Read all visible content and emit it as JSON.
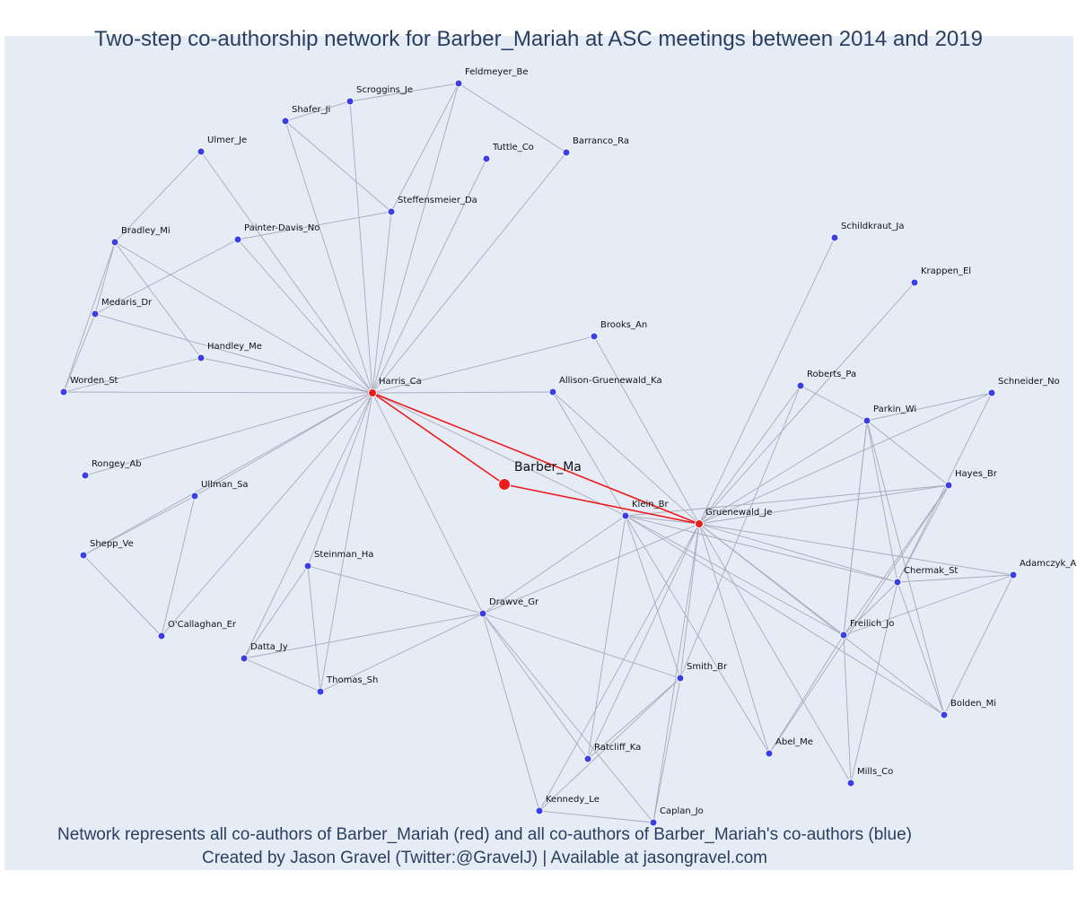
{
  "title": "Two-step co-authorship network for Barber_Mariah at ASC meetings between 2014 and 2019",
  "caption": {
    "line1": "Network represents all co-authors of Barber_Mariah (red) and all co-authors of Barber_Mariah's co-authors (blue)",
    "line2": "Created by Jason Gravel (Twitter:@GravelJ) | Available at jasongravel.com"
  },
  "colors": {
    "background": "#e5ecf6",
    "red": "#ef1c1c",
    "blue": "#3c3fe5",
    "edge": "#a9aab8",
    "title": "#2a3f5f"
  },
  "center": "Barber_Ma",
  "nodes": [
    {
      "id": "Barber_Ma",
      "group": "center"
    },
    {
      "id": "Harris_Ca",
      "group": "coauthor"
    },
    {
      "id": "Gruenewald_Je",
      "group": "coauthor"
    },
    {
      "id": "Feldmeyer_Be",
      "group": "second"
    },
    {
      "id": "Scroggins_Je",
      "group": "second"
    },
    {
      "id": "Shafer_Ji",
      "group": "second"
    },
    {
      "id": "Tuttle_Co",
      "group": "second"
    },
    {
      "id": "Barranco_Ra",
      "group": "second"
    },
    {
      "id": "Ulmer_Je",
      "group": "second"
    },
    {
      "id": "Steffensmeier_Da",
      "group": "second"
    },
    {
      "id": "Bradley_Mi",
      "group": "second"
    },
    {
      "id": "Painter-Davis_No",
      "group": "second"
    },
    {
      "id": "Medaris_Dr",
      "group": "second"
    },
    {
      "id": "Handley_Me",
      "group": "second"
    },
    {
      "id": "Worden_St",
      "group": "second"
    },
    {
      "id": "Rongey_Ab",
      "group": "second"
    },
    {
      "id": "Ullman_Sa",
      "group": "second"
    },
    {
      "id": "Shepp_Ve",
      "group": "second"
    },
    {
      "id": "O'Callaghan_Er",
      "group": "second"
    },
    {
      "id": "Steinman_Ha",
      "group": "second"
    },
    {
      "id": "Datta_Jy",
      "group": "second"
    },
    {
      "id": "Thomas_Sh",
      "group": "second"
    },
    {
      "id": "Brooks_An",
      "group": "second"
    },
    {
      "id": "Allison-Gruenewald_Ka",
      "group": "second"
    },
    {
      "id": "Drawve_Gr",
      "group": "second"
    },
    {
      "id": "Klein_Br",
      "group": "second"
    },
    {
      "id": "Schildkraut_Ja",
      "group": "second"
    },
    {
      "id": "Krappen_El",
      "group": "second"
    },
    {
      "id": "Roberts_Pa",
      "group": "second"
    },
    {
      "id": "Schneider_No",
      "group": "second"
    },
    {
      "id": "Parkin_Wi",
      "group": "second"
    },
    {
      "id": "Hayes_Br",
      "group": "second"
    },
    {
      "id": "Adamczyk_A",
      "group": "second"
    },
    {
      "id": "Chermak_St",
      "group": "second"
    },
    {
      "id": "Freilich_Jo",
      "group": "second"
    },
    {
      "id": "Smith_Br",
      "group": "second"
    },
    {
      "id": "Bolden_Mi",
      "group": "second"
    },
    {
      "id": "Abel_Me",
      "group": "second"
    },
    {
      "id": "Ratcliff_Ka",
      "group": "second"
    },
    {
      "id": "Mills_Co",
      "group": "second"
    },
    {
      "id": "Kennedy_Le",
      "group": "second"
    },
    {
      "id": "Caplan_Jo",
      "group": "second"
    }
  ],
  "edges": [
    [
      "Barber_Ma",
      "Harris_Ca",
      "red"
    ],
    [
      "Barber_Ma",
      "Gruenewald_Je",
      "red"
    ],
    [
      "Harris_Ca",
      "Gruenewald_Je",
      "red"
    ],
    [
      "Harris_Ca",
      "Feldmeyer_Be"
    ],
    [
      "Harris_Ca",
      "Scroggins_Je"
    ],
    [
      "Harris_Ca",
      "Shafer_Ji"
    ],
    [
      "Harris_Ca",
      "Tuttle_Co"
    ],
    [
      "Harris_Ca",
      "Barranco_Ra"
    ],
    [
      "Harris_Ca",
      "Ulmer_Je"
    ],
    [
      "Harris_Ca",
      "Steffensmeier_Da"
    ],
    [
      "Harris_Ca",
      "Bradley_Mi"
    ],
    [
      "Harris_Ca",
      "Painter-Davis_No"
    ],
    [
      "Harris_Ca",
      "Medaris_Dr"
    ],
    [
      "Harris_Ca",
      "Handley_Me"
    ],
    [
      "Harris_Ca",
      "Worden_St"
    ],
    [
      "Harris_Ca",
      "Rongey_Ab"
    ],
    [
      "Harris_Ca",
      "Ullman_Sa"
    ],
    [
      "Harris_Ca",
      "Shepp_Ve"
    ],
    [
      "Harris_Ca",
      "O'Callaghan_Er"
    ],
    [
      "Harris_Ca",
      "Steinman_Ha"
    ],
    [
      "Harris_Ca",
      "Datta_Jy"
    ],
    [
      "Harris_Ca",
      "Thomas_Sh"
    ],
    [
      "Harris_Ca",
      "Brooks_An"
    ],
    [
      "Harris_Ca",
      "Allison-Gruenewald_Ka"
    ],
    [
      "Harris_Ca",
      "Drawve_Gr"
    ],
    [
      "Harris_Ca",
      "Klein_Br"
    ],
    [
      "Feldmeyer_Be",
      "Scroggins_Je"
    ],
    [
      "Feldmeyer_Be",
      "Steffensmeier_Da"
    ],
    [
      "Feldmeyer_Be",
      "Barranco_Ra"
    ],
    [
      "Shafer_Ji",
      "Scroggins_Je"
    ],
    [
      "Shafer_Ji",
      "Steffensmeier_Da"
    ],
    [
      "Steffensmeier_Da",
      "Painter-Davis_No"
    ],
    [
      "Ulmer_Je",
      "Bradley_Mi"
    ],
    [
      "Bradley_Mi",
      "Medaris_Dr"
    ],
    [
      "Bradley_Mi",
      "Handley_Me"
    ],
    [
      "Bradley_Mi",
      "Worden_St"
    ],
    [
      "Painter-Davis_No",
      "Medaris_Dr"
    ],
    [
      "Medaris_Dr",
      "Worden_St"
    ],
    [
      "Handley_Me",
      "Worden_St"
    ],
    [
      "Ullman_Sa",
      "Shepp_Ve"
    ],
    [
      "Ullman_Sa",
      "O'Callaghan_Er"
    ],
    [
      "Shepp_Ve",
      "O'Callaghan_Er"
    ],
    [
      "Steinman_Ha",
      "Datta_Jy"
    ],
    [
      "Steinman_Ha",
      "Thomas_Sh"
    ],
    [
      "Steinman_Ha",
      "Drawve_Gr"
    ],
    [
      "Datta_Jy",
      "Drawve_Gr"
    ],
    [
      "Thomas_Sh",
      "Drawve_Gr"
    ],
    [
      "Datta_Jy",
      "Thomas_Sh"
    ],
    [
      "Gruenewald_Je",
      "Klein_Br"
    ],
    [
      "Gruenewald_Je",
      "Schildkraut_Ja"
    ],
    [
      "Gruenewald_Je",
      "Krappen_El"
    ],
    [
      "Gruenewald_Je",
      "Roberts_Pa"
    ],
    [
      "Gruenewald_Je",
      "Schneider_No"
    ],
    [
      "Gruenewald_Je",
      "Parkin_Wi"
    ],
    [
      "Gruenewald_Je",
      "Hayes_Br"
    ],
    [
      "Gruenewald_Je",
      "Adamczyk_A"
    ],
    [
      "Gruenewald_Je",
      "Chermak_St"
    ],
    [
      "Gruenewald_Je",
      "Freilich_Jo"
    ],
    [
      "Gruenewald_Je",
      "Smith_Br"
    ],
    [
      "Gruenewald_Je",
      "Bolden_Mi"
    ],
    [
      "Gruenewald_Je",
      "Abel_Me"
    ],
    [
      "Gruenewald_Je",
      "Ratcliff_Ka"
    ],
    [
      "Gruenewald_Je",
      "Mills_Co"
    ],
    [
      "Gruenewald_Je",
      "Kennedy_Le"
    ],
    [
      "Gruenewald_Je",
      "Caplan_Jo"
    ],
    [
      "Gruenewald_Je",
      "Drawve_Gr"
    ],
    [
      "Gruenewald_Je",
      "Allison-Gruenewald_Ka"
    ],
    [
      "Gruenewald_Je",
      "Brooks_An"
    ],
    [
      "Klein_Br",
      "Drawve_Gr"
    ],
    [
      "Klein_Br",
      "Smith_Br"
    ],
    [
      "Klein_Br",
      "Chermak_St"
    ],
    [
      "Klein_Br",
      "Freilich_Jo"
    ],
    [
      "Klein_Br",
      "Hayes_Br"
    ],
    [
      "Klein_Br",
      "Abel_Me"
    ],
    [
      "Klein_Br",
      "Ratcliff_Ka"
    ],
    [
      "Klein_Br",
      "Allison-Gruenewald_Ka"
    ],
    [
      "Klein_Br",
      "Bolden_Mi"
    ],
    [
      "Drawve_Gr",
      "Smith_Br"
    ],
    [
      "Drawve_Gr",
      "Ratcliff_Ka"
    ],
    [
      "Drawve_Gr",
      "Kennedy_Le"
    ],
    [
      "Drawve_Gr",
      "Caplan_Jo"
    ],
    [
      "Smith_Br",
      "Ratcliff_Ka"
    ],
    [
      "Smith_Br",
      "Kennedy_Le"
    ],
    [
      "Smith_Br",
      "Caplan_Jo"
    ],
    [
      "Smith_Br",
      "Roberts_Pa"
    ],
    [
      "Kennedy_Le",
      "Caplan_Jo"
    ],
    [
      "Parkin_Wi",
      "Schneider_No"
    ],
    [
      "Parkin_Wi",
      "Hayes_Br"
    ],
    [
      "Parkin_Wi",
      "Chermak_St"
    ],
    [
      "Parkin_Wi",
      "Freilich_Jo"
    ],
    [
      "Parkin_Wi",
      "Bolden_Mi"
    ],
    [
      "Chermak_St",
      "Hayes_Br"
    ],
    [
      "Chermak_St",
      "Freilich_Jo"
    ],
    [
      "Chermak_St",
      "Adamczyk_A"
    ],
    [
      "Chermak_St",
      "Bolden_Mi"
    ],
    [
      "Chermak_St",
      "Mills_Co"
    ],
    [
      "Chermak_St",
      "Schneider_No"
    ],
    [
      "Freilich_Jo",
      "Hayes_Br"
    ],
    [
      "Freilich_Jo",
      "Adamczyk_A"
    ],
    [
      "Freilich_Jo",
      "Mills_Co"
    ],
    [
      "Freilich_Jo",
      "Abel_Me"
    ],
    [
      "Freilich_Jo",
      "Parkin_Wi"
    ],
    [
      "Hayes_Br",
      "Abel_Me"
    ],
    [
      "Adamczyk_A",
      "Bolden_Mi"
    ],
    [
      "Roberts_Pa",
      "Parkin_Wi"
    ]
  ]
}
